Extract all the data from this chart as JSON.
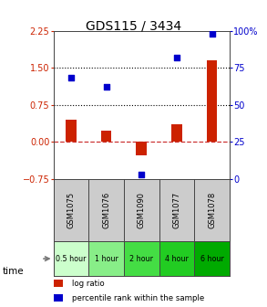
{
  "title": "GDS115 / 3434",
  "samples": [
    "GSM1075",
    "GSM1076",
    "GSM1090",
    "GSM1077",
    "GSM1078"
  ],
  "time_labels": [
    "0.5 hour",
    "1 hour",
    "2 hour",
    "4 hour",
    "6 hour"
  ],
  "time_colors": [
    "#ccffcc",
    "#88ee88",
    "#44dd44",
    "#22cc22",
    "#00aa00"
  ],
  "log_ratio": [
    0.45,
    0.23,
    -0.27,
    0.35,
    1.65
  ],
  "percentile_rank": [
    68,
    62,
    3,
    82,
    98
  ],
  "bar_color": "#cc2200",
  "dot_color": "#0000cc",
  "ylim_left": [
    -0.75,
    2.25
  ],
  "ylim_right": [
    0,
    100
  ],
  "yticks_left": [
    -0.75,
    0,
    0.75,
    1.5,
    2.25
  ],
  "yticks_right": [
    0,
    25,
    50,
    75,
    100
  ],
  "hlines": [
    0.75,
    1.5
  ],
  "zero_line": 0.0,
  "plot_bg": "#ffffff",
  "sample_bg": "#cccccc",
  "spine_color": "#444444",
  "legend_bar_label": "log ratio",
  "legend_dot_label": "percentile rank within the sample"
}
